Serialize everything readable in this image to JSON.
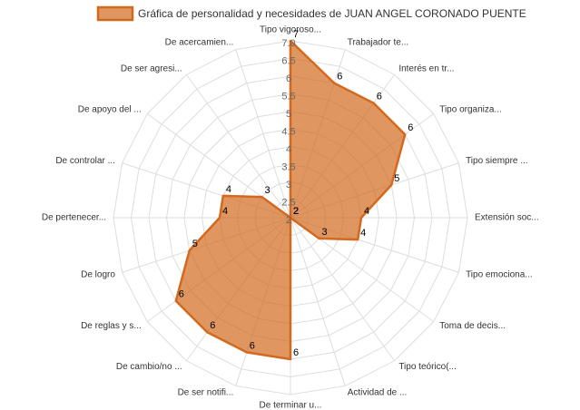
{
  "chart_data": {
    "type": "radar",
    "categories": [
      "Tipo vigoroso...",
      "Trabajador te...",
      "Interés en tr...",
      "Tipo organiza...",
      "Tipo siempre ...",
      "Extensión soc...",
      "Tipo emociona...",
      "Toma de decis...",
      "Tipo teórico(...",
      "Actividad de ...",
      "De terminar u...",
      "De ser notifi...",
      "De cambio/no ...",
      "De reglas y s...",
      "De logro",
      "De pertenecer...",
      "De controlar ...",
      "De apoyo del ...",
      "De ser agresi...",
      "De acercamien..."
    ],
    "series": [
      {
        "name": "Gráfica de personalidad y necesidades de JUAN ANGEL CORONADO PUENTE",
        "color": "#d2691e",
        "values": [
          7,
          6,
          6,
          6,
          5,
          4,
          4,
          3,
          2,
          2,
          6,
          6,
          6,
          6,
          5,
          4,
          4,
          3,
          2,
          2
        ]
      }
    ],
    "ylim": [
      2,
      7
    ],
    "yticks": [
      2,
      2.5,
      3,
      3.5,
      4,
      4.5,
      5,
      5.5,
      6,
      6.5,
      {
        "value": 7,
        "label": "7.0"
      }
    ],
    "grid": true,
    "legend": "top"
  }
}
